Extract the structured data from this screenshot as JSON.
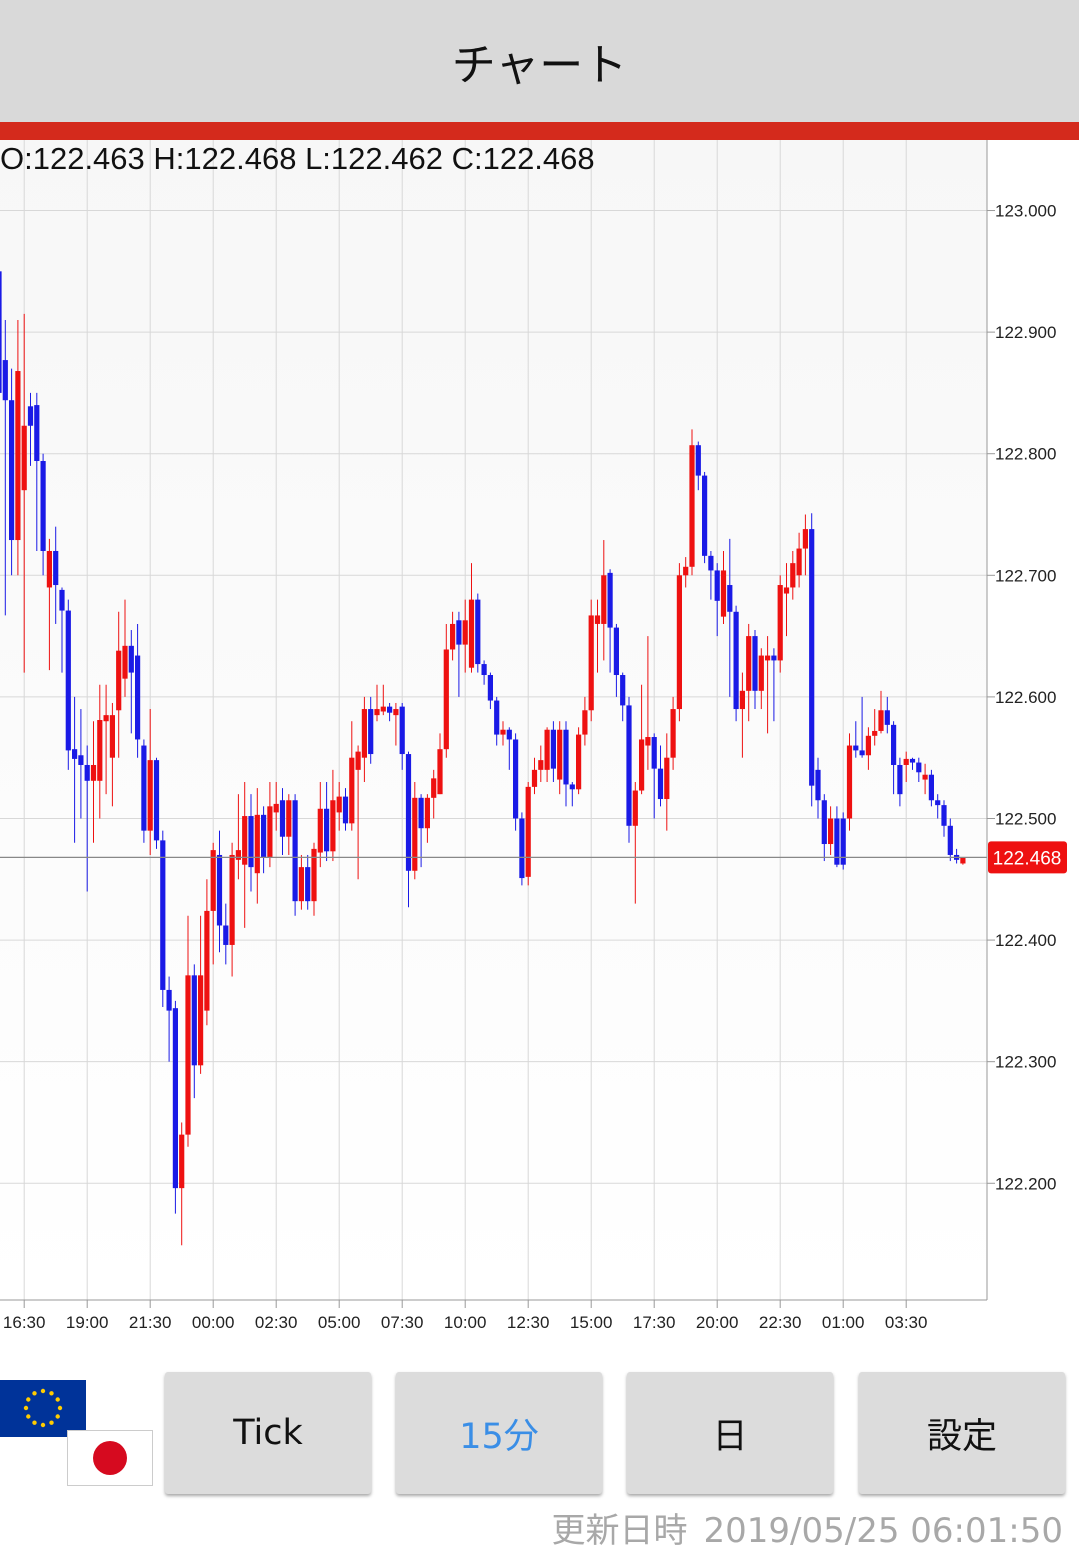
{
  "header": {
    "title": "チャート"
  },
  "chart_data": {
    "type": "candlestick",
    "ohlc_text": "O:122.463 H:122.468 L:122.462 C:122.468",
    "up_color": "#ee1111",
    "down_color": "#1a1ae6",
    "ylim": [
      122.104,
      123.058
    ],
    "yticks": [
      {
        "value": 122.2,
        "label": "122.200"
      },
      {
        "value": 122.3,
        "label": "122.300"
      },
      {
        "value": 122.4,
        "label": "122.400"
      },
      {
        "value": 122.5,
        "label": "122.500"
      },
      {
        "value": 122.6,
        "label": "122.600"
      },
      {
        "value": 122.7,
        "label": "122.700"
      },
      {
        "value": 122.8,
        "label": "122.800"
      },
      {
        "value": 122.9,
        "label": "122.900"
      },
      {
        "value": 123.0,
        "label": "123.000"
      }
    ],
    "grid": true,
    "last": 122.468,
    "categories": [
      null,
      null,
      null,
      null,
      "16:30",
      null,
      null,
      null,
      null,
      null,
      null,
      null,
      null,
      null,
      "19:00",
      null,
      null,
      null,
      null,
      null,
      null,
      null,
      null,
      null,
      "21:30",
      null,
      null,
      null,
      null,
      null,
      null,
      null,
      null,
      null,
      "00:00",
      null,
      null,
      null,
      null,
      null,
      null,
      null,
      null,
      null,
      "02:30",
      null,
      null,
      null,
      null,
      null,
      null,
      null,
      null,
      null,
      "05:00",
      null,
      null,
      null,
      null,
      null,
      null,
      null,
      null,
      null,
      "07:30",
      null,
      null,
      null,
      null,
      null,
      null,
      null,
      null,
      null,
      "10:00",
      null,
      null,
      null,
      null,
      null,
      null,
      null,
      null,
      null,
      "12:30",
      null,
      null,
      null,
      null,
      null,
      null,
      null,
      null,
      null,
      "15:00",
      null,
      null,
      null,
      null,
      null,
      null,
      null,
      null,
      null,
      "17:30",
      null,
      null,
      null,
      null,
      null,
      null,
      null,
      null,
      null,
      "20:00",
      null,
      null,
      null,
      null,
      null,
      null,
      null,
      null,
      null,
      "22:30",
      null,
      null,
      null,
      null,
      null,
      null,
      null,
      null,
      null,
      "01:00",
      null,
      null,
      null,
      null,
      null,
      null,
      null,
      null,
      null,
      "03:30",
      null,
      null,
      null,
      null,
      null,
      null,
      null,
      null,
      null
    ],
    "ohlc": [
      [
        122.95,
        123.014,
        122.83,
        122.85
      ],
      [
        122.877,
        122.91,
        122.667,
        122.844
      ],
      [
        122.844,
        122.87,
        122.7,
        122.729
      ],
      [
        122.729,
        122.91,
        122.7,
        122.868
      ],
      [
        122.77,
        122.915,
        122.62,
        122.823
      ],
      [
        122.839,
        122.85,
        122.79,
        122.823
      ],
      [
        122.84,
        122.85,
        122.72,
        122.794
      ],
      [
        122.794,
        122.8,
        122.7,
        122.72
      ],
      [
        122.69,
        122.73,
        122.622,
        122.72
      ],
      [
        122.72,
        122.74,
        122.66,
        122.692
      ],
      [
        122.688,
        122.69,
        122.62,
        122.671
      ],
      [
        122.671,
        122.68,
        122.54,
        122.556
      ],
      [
        122.557,
        122.6,
        122.48,
        122.549
      ],
      [
        122.552,
        122.59,
        122.5,
        122.544
      ],
      [
        122.544,
        122.56,
        122.44,
        122.531
      ],
      [
        122.531,
        122.58,
        122.48,
        122.544
      ],
      [
        122.531,
        122.61,
        122.5,
        122.581
      ],
      [
        122.58,
        122.61,
        122.52,
        122.585
      ],
      [
        122.55,
        122.595,
        122.51,
        122.585
      ],
      [
        122.589,
        122.67,
        122.55,
        122.638
      ],
      [
        122.615,
        122.68,
        122.6,
        122.642
      ],
      [
        122.642,
        122.655,
        122.57,
        122.62
      ],
      [
        122.634,
        122.66,
        122.55,
        122.565
      ],
      [
        122.56,
        122.565,
        122.48,
        122.49
      ],
      [
        122.49,
        122.59,
        122.47,
        122.548
      ],
      [
        122.548,
        122.55,
        122.475,
        122.482
      ],
      [
        122.482,
        122.49,
        122.345,
        122.359
      ],
      [
        122.359,
        122.37,
        122.3,
        122.342
      ],
      [
        122.344,
        122.35,
        122.175,
        122.196
      ],
      [
        122.196,
        122.25,
        122.149,
        122.24
      ],
      [
        122.24,
        122.42,
        122.23,
        122.371
      ],
      [
        122.371,
        122.38,
        122.27,
        122.297
      ],
      [
        122.297,
        122.42,
        122.29,
        122.371
      ],
      [
        122.342,
        122.45,
        122.33,
        122.424
      ],
      [
        122.424,
        122.48,
        122.38,
        122.474
      ],
      [
        122.47,
        122.49,
        122.39,
        122.412
      ],
      [
        122.412,
        122.43,
        122.38,
        122.396
      ],
      [
        122.396,
        122.48,
        122.37,
        122.47
      ],
      [
        122.466,
        122.52,
        122.45,
        122.474
      ],
      [
        122.462,
        122.53,
        122.41,
        122.502
      ],
      [
        122.502,
        122.52,
        122.44,
        122.46
      ],
      [
        122.455,
        122.525,
        122.43,
        122.503
      ],
      [
        122.503,
        122.51,
        122.455,
        122.468
      ],
      [
        122.468,
        122.53,
        122.46,
        122.51
      ],
      [
        122.505,
        122.53,
        122.49,
        122.512
      ],
      [
        122.515,
        122.525,
        122.47,
        122.485
      ],
      [
        122.485,
        122.52,
        122.47,
        122.515
      ],
      [
        122.515,
        122.52,
        122.42,
        122.432
      ],
      [
        122.432,
        122.47,
        122.425,
        122.46
      ],
      [
        122.46,
        122.47,
        122.425,
        122.432
      ],
      [
        122.432,
        122.48,
        122.42,
        122.475
      ],
      [
        122.472,
        122.53,
        122.46,
        122.508
      ],
      [
        122.508,
        122.53,
        122.465,
        122.473
      ],
      [
        122.473,
        122.54,
        122.465,
        122.515
      ],
      [
        122.505,
        122.53,
        122.49,
        122.518
      ],
      [
        122.518,
        122.525,
        122.49,
        122.496
      ],
      [
        122.496,
        122.58,
        122.49,
        122.55
      ],
      [
        122.54,
        122.56,
        122.45,
        122.555
      ],
      [
        122.55,
        122.6,
        122.53,
        122.59
      ],
      [
        122.59,
        122.6,
        122.545,
        122.553
      ],
      [
        122.585,
        122.61,
        122.58,
        122.59
      ],
      [
        122.588,
        122.61,
        122.585,
        122.592
      ],
      [
        122.592,
        122.595,
        122.58,
        122.587
      ],
      [
        122.585,
        122.595,
        122.56,
        122.59
      ],
      [
        122.592,
        122.595,
        122.54,
        122.553
      ],
      [
        122.553,
        122.555,
        122.427,
        122.457
      ],
      [
        122.457,
        122.53,
        122.45,
        122.517
      ],
      [
        122.517,
        122.52,
        122.46,
        122.492
      ],
      [
        122.492,
        122.52,
        122.48,
        122.517
      ],
      [
        122.517,
        122.54,
        122.5,
        122.533
      ],
      [
        122.52,
        122.57,
        122.52,
        122.557
      ],
      [
        122.557,
        122.66,
        122.55,
        122.639
      ],
      [
        122.639,
        122.67,
        122.63,
        122.66
      ],
      [
        122.663,
        122.67,
        122.6,
        122.643
      ],
      [
        122.643,
        122.68,
        122.62,
        122.663
      ],
      [
        122.624,
        122.71,
        122.62,
        122.68
      ],
      [
        122.68,
        122.685,
        122.62,
        122.627
      ],
      [
        122.627,
        122.63,
        122.61,
        122.618
      ],
      [
        122.618,
        122.62,
        122.59,
        122.597
      ],
      [
        122.597,
        122.6,
        122.56,
        122.569
      ],
      [
        122.569,
        122.58,
        122.56,
        122.573
      ],
      [
        122.573,
        122.575,
        122.54,
        122.565
      ],
      [
        122.565,
        122.57,
        122.49,
        122.5
      ],
      [
        122.5,
        122.505,
        122.445,
        122.451
      ],
      [
        122.452,
        122.53,
        122.445,
        122.526
      ],
      [
        122.526,
        122.55,
        122.52,
        122.54
      ],
      [
        122.54,
        122.56,
        122.53,
        122.548
      ],
      [
        122.54,
        122.575,
        122.53,
        122.573
      ],
      [
        122.573,
        122.58,
        122.53,
        122.541
      ],
      [
        122.532,
        122.58,
        122.52,
        122.573
      ],
      [
        122.573,
        122.58,
        122.51,
        122.528
      ],
      [
        122.528,
        122.53,
        122.51,
        122.524
      ],
      [
        122.524,
        122.575,
        122.52,
        122.569
      ],
      [
        122.569,
        122.6,
        122.56,
        122.589
      ],
      [
        122.589,
        122.68,
        122.58,
        122.667
      ],
      [
        122.66,
        122.68,
        122.62,
        122.667
      ],
      [
        122.66,
        122.729,
        122.63,
        122.7
      ],
      [
        122.702,
        122.705,
        122.62,
        122.657
      ],
      [
        122.657,
        122.66,
        122.6,
        122.618
      ],
      [
        122.618,
        122.62,
        122.58,
        122.593
      ],
      [
        122.593,
        122.6,
        122.48,
        122.494
      ],
      [
        122.494,
        122.53,
        122.43,
        122.523
      ],
      [
        122.523,
        122.61,
        122.52,
        122.565
      ],
      [
        122.56,
        122.65,
        122.54,
        122.567
      ],
      [
        122.567,
        122.57,
        122.5,
        122.541
      ],
      [
        122.541,
        122.56,
        122.51,
        122.516
      ],
      [
        122.516,
        122.57,
        122.49,
        122.55
      ],
      [
        122.55,
        122.6,
        122.54,
        122.59
      ],
      [
        122.59,
        122.71,
        122.58,
        122.7
      ],
      [
        122.7,
        122.715,
        122.69,
        122.707
      ],
      [
        122.707,
        122.82,
        122.7,
        122.807
      ],
      [
        122.807,
        122.81,
        122.77,
        122.782
      ],
      [
        122.782,
        122.785,
        122.71,
        122.716
      ],
      [
        122.716,
        122.72,
        122.68,
        122.704
      ],
      [
        122.704,
        122.71,
        122.65,
        122.679
      ],
      [
        122.666,
        122.72,
        122.66,
        122.704
      ],
      [
        122.692,
        122.73,
        122.6,
        122.67
      ],
      [
        122.67,
        122.675,
        122.58,
        122.59
      ],
      [
        122.59,
        122.62,
        122.55,
        122.605
      ],
      [
        122.605,
        122.66,
        122.58,
        122.65
      ],
      [
        122.65,
        122.655,
        122.59,
        122.605
      ],
      [
        122.605,
        122.64,
        122.59,
        122.634
      ],
      [
        122.63,
        122.65,
        122.57,
        122.634
      ],
      [
        122.634,
        122.64,
        122.58,
        122.63
      ],
      [
        122.63,
        122.7,
        122.62,
        122.692
      ],
      [
        122.685,
        122.71,
        122.65,
        122.69
      ],
      [
        122.69,
        122.72,
        122.68,
        122.71
      ],
      [
        122.7,
        122.735,
        122.69,
        122.722
      ],
      [
        122.722,
        122.75,
        122.7,
        122.738
      ],
      [
        122.738,
        122.751,
        122.51,
        122.527
      ],
      [
        122.54,
        122.55,
        122.5,
        122.515
      ],
      [
        122.515,
        122.52,
        122.465,
        122.479
      ],
      [
        122.479,
        122.51,
        122.47,
        122.5
      ],
      [
        122.5,
        122.51,
        122.46,
        122.462
      ],
      [
        122.5,
        122.505,
        122.458,
        122.462
      ],
      [
        122.5,
        122.57,
        122.49,
        122.56
      ],
      [
        122.56,
        122.58,
        122.55,
        122.556
      ],
      [
        122.556,
        122.6,
        122.55,
        122.552
      ],
      [
        122.552,
        122.575,
        122.54,
        122.568
      ],
      [
        122.568,
        122.59,
        122.56,
        122.572
      ],
      [
        122.572,
        122.605,
        122.57,
        122.589
      ],
      [
        122.589,
        122.6,
        122.57,
        122.577
      ],
      [
        122.577,
        122.58,
        122.52,
        122.544
      ],
      [
        122.544,
        122.55,
        122.51,
        122.52
      ],
      [
        122.544,
        122.555,
        122.53,
        122.549
      ],
      [
        122.549,
        122.55,
        122.54,
        122.546
      ],
      [
        122.546,
        122.55,
        122.53,
        122.538
      ],
      [
        122.532,
        122.545,
        122.52,
        122.536
      ],
      [
        122.536,
        122.54,
        122.51,
        122.515
      ],
      [
        122.515,
        122.52,
        122.5,
        122.511
      ],
      [
        122.511,
        122.515,
        122.485,
        122.494
      ],
      [
        122.494,
        122.5,
        122.465,
        122.47
      ],
      [
        122.47,
        122.475,
        122.463,
        122.466
      ],
      [
        122.463,
        122.468,
        122.462,
        122.468
      ]
    ]
  },
  "buttons": [
    "Tick",
    "15分",
    "日",
    "設定"
  ],
  "updated_label": "更新日時",
  "updated_at": "2019/05/25 06:01:50"
}
